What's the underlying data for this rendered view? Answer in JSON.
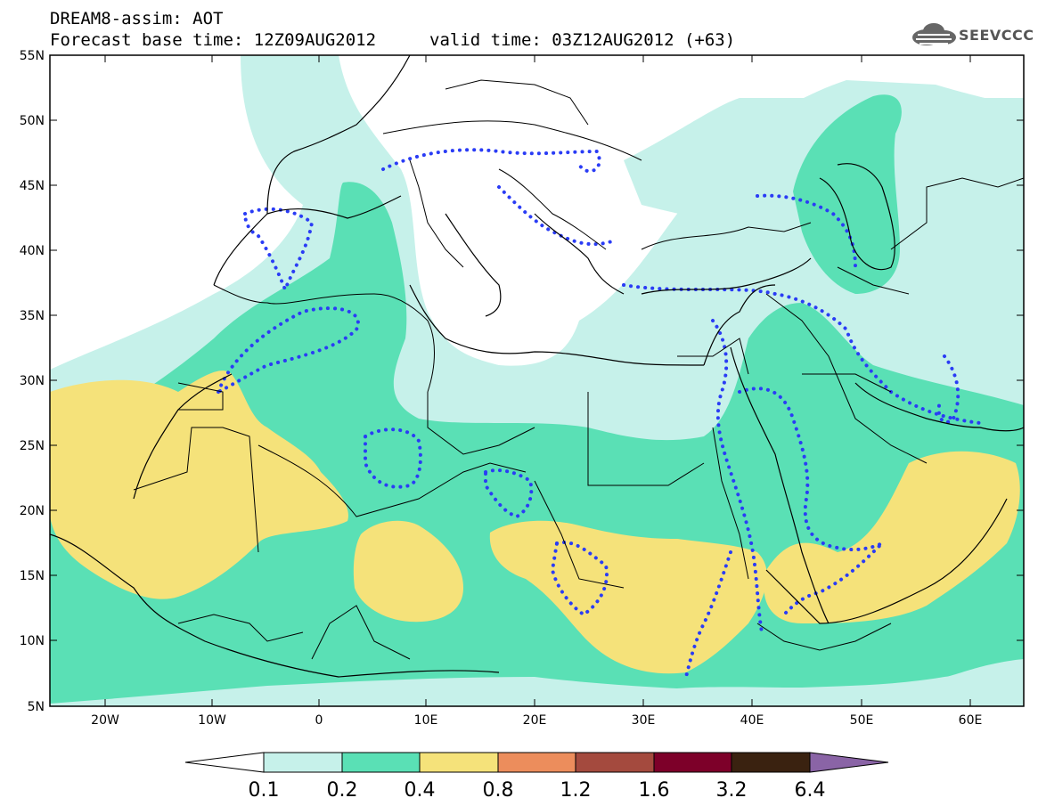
{
  "header": {
    "title": "DREAM8-assim: AOT",
    "base_time": "Forecast base time: 12Z09AUG2012",
    "valid_time": "valid time: 03Z12AUG2012 (+63)"
  },
  "logo": {
    "text": "SEEVCCC",
    "icon": "cloud-icon"
  },
  "map": {
    "lat_labels": [
      "55N",
      "50N",
      "45N",
      "40N",
      "35N",
      "30N",
      "25N",
      "20N",
      "15N",
      "10N",
      "5N"
    ],
    "lon_labels": [
      "20W",
      "10W",
      "0",
      "10E",
      "20E",
      "30E",
      "40E",
      "50E",
      "60E"
    ],
    "colors": {
      "0.1-0.2": "#c6f1ea",
      "0.2-0.4": "#5ae0b5",
      "0.4-0.8": "#f5e27a",
      "contour": "#2a3cf5",
      "border": "#000000"
    }
  },
  "colorbar": {
    "labels": [
      "0.1",
      "0.2",
      "0.4",
      "0.8",
      "1.2",
      "1.6",
      "3.2",
      "6.4"
    ],
    "colors": [
      "#ffffff",
      "#c6f1ea",
      "#5ae0b5",
      "#f5e27a",
      "#ec8d5c",
      "#a44a3e",
      "#7d0029",
      "#3a2210",
      "#8a64a6"
    ]
  }
}
